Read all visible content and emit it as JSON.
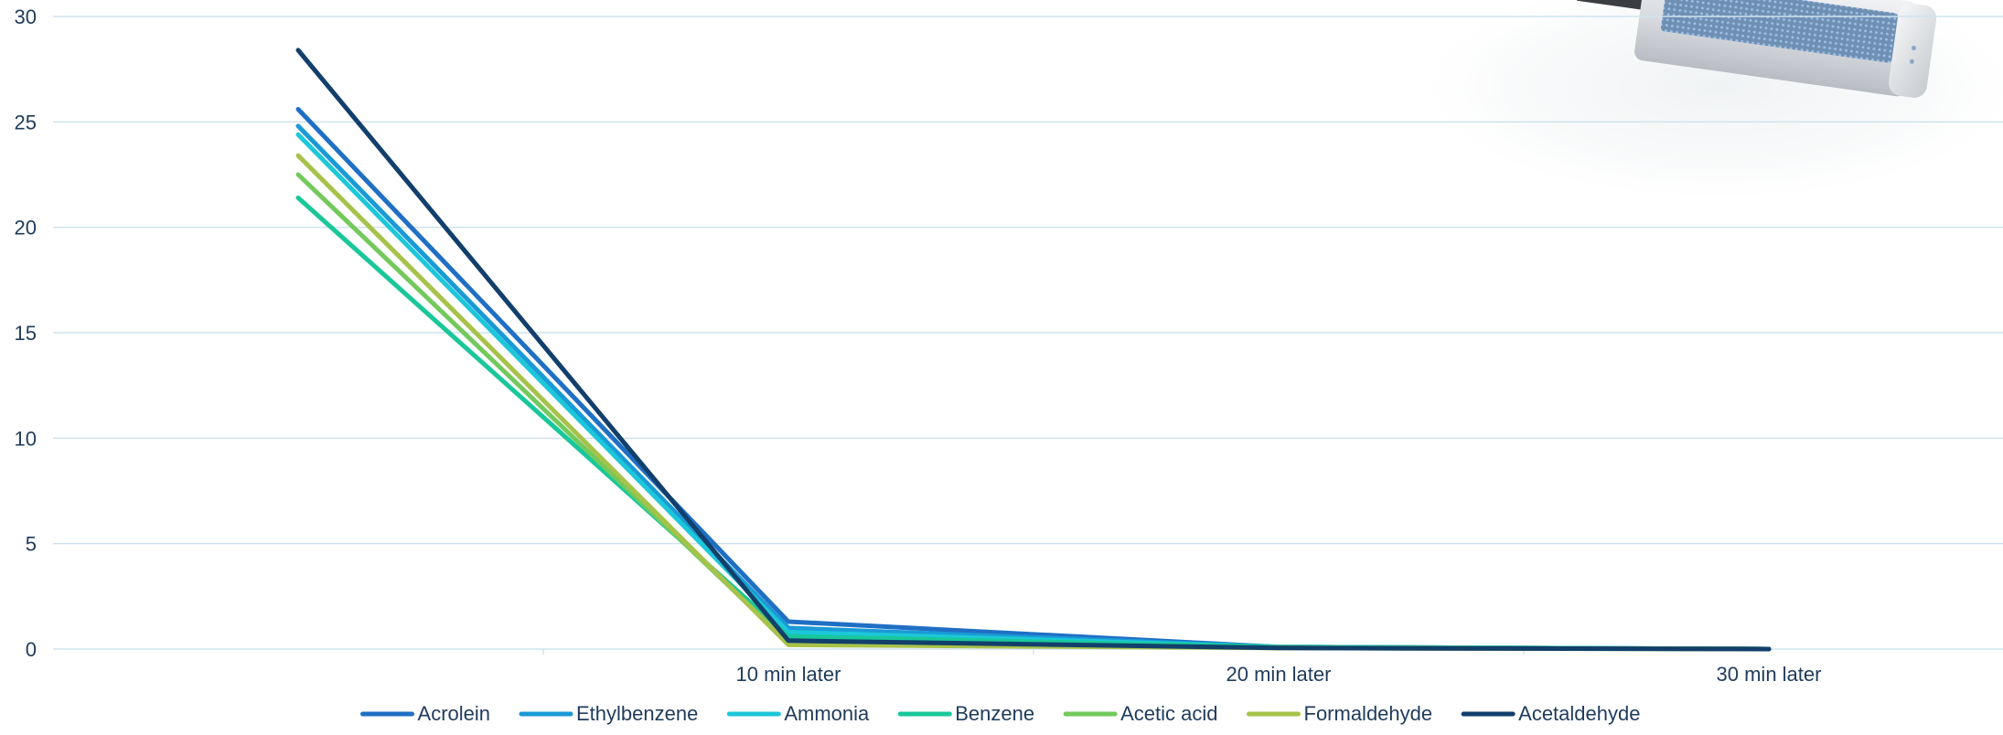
{
  "chart_data": {
    "type": "line",
    "categories": [
      "",
      "10 min later",
      "20 min later",
      "30 min later"
    ],
    "ylim": [
      0,
      30
    ],
    "yticks": [
      0,
      5,
      10,
      15,
      20,
      25,
      30
    ],
    "grid": true,
    "legend_position": "bottom",
    "series": [
      {
        "name": "Acrolein",
        "color": "#1f6fc4",
        "values": [
          25.6,
          1.3,
          0.1,
          0.0
        ]
      },
      {
        "name": "Ethylbenzene",
        "color": "#1a9ad6",
        "values": [
          24.8,
          1.0,
          0.1,
          0.0
        ]
      },
      {
        "name": "Ammonia",
        "color": "#1cc7d9",
        "values": [
          24.4,
          0.8,
          0.1,
          0.0
        ]
      },
      {
        "name": "Benzene",
        "color": "#19c79a",
        "values": [
          21.4,
          0.6,
          0.1,
          0.0
        ]
      },
      {
        "name": "Acetic acid",
        "color": "#74c95c",
        "values": [
          22.5,
          0.3,
          0.05,
          0.0
        ]
      },
      {
        "name": "Formaldehyde",
        "color": "#a7c24a",
        "values": [
          23.4,
          0.2,
          0.05,
          0.0
        ]
      },
      {
        "name": "Acetaldehyde",
        "color": "#123f6b",
        "values": [
          28.4,
          0.4,
          0.05,
          0.0
        ]
      }
    ]
  },
  "decor": {
    "product_image_icon": "air-purifier-device-image"
  }
}
